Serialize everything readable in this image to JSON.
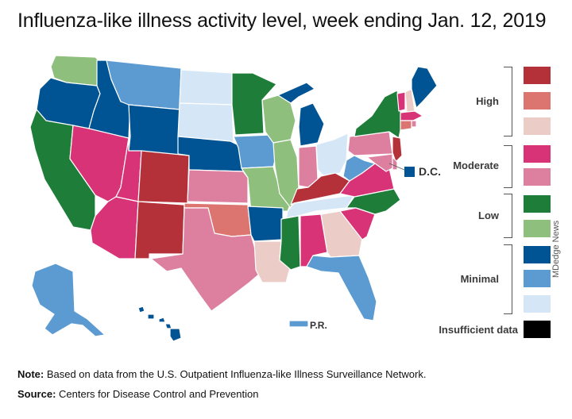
{
  "title": "Influenza-like illness activity level, week ending Jan. 12, 2019",
  "legend": {
    "groups": [
      {
        "label": "High",
        "swatches": [
          "#b5313a",
          "#dc7470",
          "#ecccc6"
        ]
      },
      {
        "label": "Moderate",
        "swatches": [
          "#d93378",
          "#dd7f9e"
        ]
      },
      {
        "label": "Low",
        "swatches": [
          "#1f7d3a",
          "#8ebf7d"
        ]
      },
      {
        "label": "Minimal",
        "swatches": [
          "#005493",
          "#5b9bd1",
          "#d5e6f6"
        ]
      }
    ],
    "insufficient": {
      "label": "Insufficient data",
      "color": "#000000"
    }
  },
  "labels": {
    "dc": "D.C.",
    "pr": "P.R."
  },
  "credit": "MDedge News",
  "footer": {
    "note_label": "Note:",
    "note_text": " Based on data from the U.S. Outpatient Influenza-like Illness Surveillance Network.",
    "source_label": "Source:",
    "source_text": " Centers for Disease Control and Prevention"
  },
  "colors": {
    "high3": "#b5313a",
    "high2": "#dc7470",
    "high1": "#ecccc6",
    "mod2": "#d93378",
    "mod1": "#dd7f9e",
    "low2": "#1f7d3a",
    "low1": "#8ebf7d",
    "min3": "#005493",
    "min2": "#5b9bd1",
    "min1": "#d5e6f6"
  },
  "states": {
    "WA": "low1",
    "OR": "min3",
    "CA": "low2",
    "ID": "min3",
    "NV": "mod2",
    "MT": "min2",
    "WY": "min3",
    "UT": "mod2",
    "AZ": "mod2",
    "CO": "high3",
    "NM": "high3",
    "ND": "min1",
    "SD": "min1",
    "NE": "min3",
    "KS": "mod1",
    "OK": "high2",
    "TX": "mod1",
    "MN": "low2",
    "IA": "min2",
    "MO": "low1",
    "AR": "min3",
    "LA": "high1",
    "WI": "low1",
    "IL": "low1",
    "MI": "min3",
    "IN": "mod1",
    "OH": "min1",
    "KY": "high3",
    "TN": "min1",
    "MS": "low2",
    "AL": "mod2",
    "GA": "high1",
    "FL": "min2",
    "SC": "mod2",
    "NC": "low2",
    "VA": "mod2",
    "WV": "min2",
    "PA": "mod1",
    "NY": "low2",
    "VT": "mod2",
    "NH": "high1",
    "ME": "min3",
    "MA": "mod2",
    "CT": "high2",
    "NJ": "high3",
    "DE": "mod1",
    "MD": "mod1",
    "RI": "mod1",
    "DC": "min3",
    "AK": "min2",
    "HI": "min3",
    "PR": "min2"
  }
}
